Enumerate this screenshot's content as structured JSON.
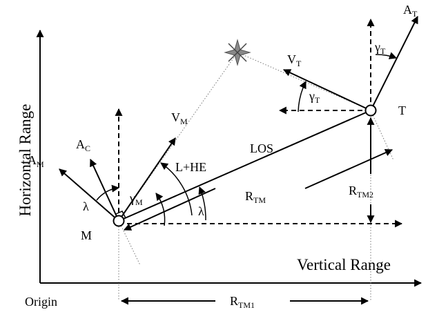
{
  "axes": {
    "vertical_label": "Horizontal Range",
    "horizontal_label": "Vertical Range",
    "origin_label": "Origin"
  },
  "points": {
    "missile": "M",
    "target": "T"
  },
  "labels": {
    "los": "LOS",
    "lead_heading": "L+HE",
    "lambda_main": "λ",
    "lambda_missile": "λ"
  },
  "subscripted_labels": {
    "a_m": {
      "base": "A",
      "sub": "M"
    },
    "a_c": {
      "base": "A",
      "sub": "C"
    },
    "v_m": {
      "base": "V",
      "sub": "M"
    },
    "gamma_m": {
      "base": "γ",
      "sub": "M"
    },
    "v_t": {
      "base": "V",
      "sub": "T"
    },
    "gamma_t_velocity": {
      "base": "γ",
      "sub": "T"
    },
    "a_t": {
      "base": "A",
      "sub": "T"
    },
    "gamma_t_accel": {
      "base": "γ",
      "sub": "T"
    },
    "r_tm": {
      "base": "R",
      "sub": "TM"
    },
    "r_tm1": {
      "base": "R",
      "sub": "TM1"
    },
    "r_tm2": {
      "base": "R",
      "sub": "TM2"
    }
  },
  "colors": {
    "ink": "#000000",
    "dotted_guide": "#777777",
    "intercept_star": "#888888"
  }
}
